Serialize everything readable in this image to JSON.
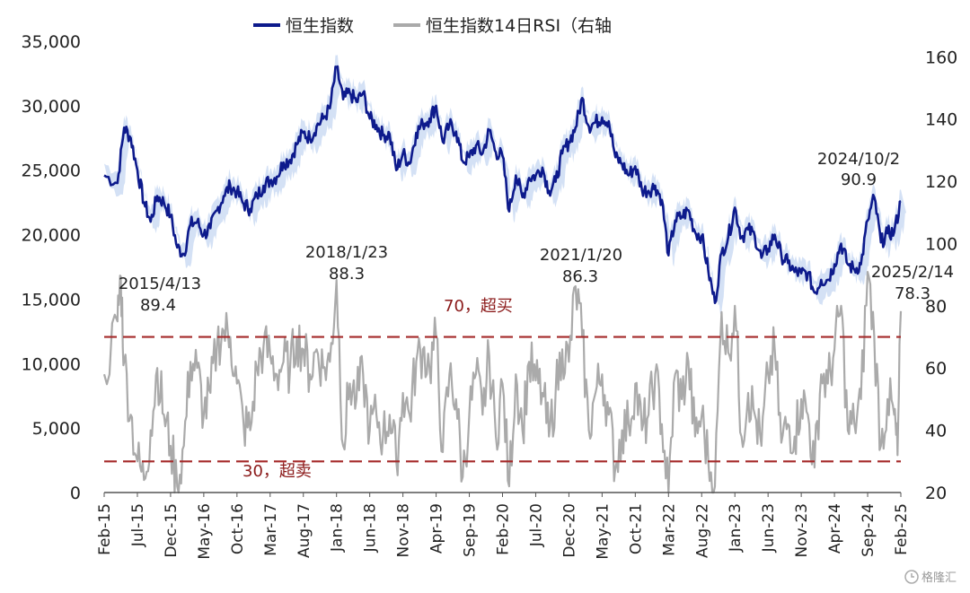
{
  "chart_data": {
    "type": "line",
    "legend": [
      {
        "name": "恒生指数",
        "color": "#0d1a8c"
      },
      {
        "name": "恒生指数14日RSI（右轴",
        "color": "#aaaaaa"
      }
    ],
    "x_tick_labels": [
      "Feb-15",
      "Jul-15",
      "Dec-15",
      "May-16",
      "Oct-16",
      "Mar-17",
      "Aug-17",
      "Jan-18",
      "Jun-18",
      "Nov-18",
      "Apr-19",
      "Sep-19",
      "Feb-20",
      "Jul-20",
      "Dec-20",
      "May-21",
      "Oct-21",
      "Mar-22",
      "Aug-22",
      "Jan-23",
      "Jun-23",
      "Nov-23",
      "Apr-24",
      "Sep-24",
      "Feb-25"
    ],
    "y_left": {
      "ticks": [
        "0",
        "5,000",
        "10,000",
        "15,000",
        "20,000",
        "25,000",
        "30,000",
        "35,000"
      ],
      "ylim": [
        0,
        35000
      ]
    },
    "y_right": {
      "ticks": [
        "20",
        "40",
        "60",
        "80",
        "100",
        "120",
        "140",
        "160"
      ],
      "ylim": [
        20,
        165
      ]
    },
    "series": [
      {
        "name": "恒生指数",
        "axis": "left",
        "color": "#0d1a8c",
        "band_color": "#c9d9f2",
        "points": [
          [
            "Feb-15",
            24600
          ],
          [
            "Apr-15",
            24000
          ],
          [
            "May-15",
            28300
          ],
          [
            "Jun-15",
            27500
          ],
          [
            "Jul-15",
            25000
          ],
          [
            "Aug-15",
            22500
          ],
          [
            "Sep-15",
            21000
          ],
          [
            "Oct-15",
            23000
          ],
          [
            "Nov-15",
            22500
          ],
          [
            "Dec-15",
            21500
          ],
          [
            "Jan-16",
            19000
          ],
          [
            "Feb-16",
            18500
          ],
          [
            "Mar-16",
            20800
          ],
          [
            "Apr-16",
            21000
          ],
          [
            "May-16",
            20000
          ],
          [
            "Jun-16",
            20500
          ],
          [
            "Jul-16",
            21900
          ],
          [
            "Aug-16",
            23000
          ],
          [
            "Sep-16",
            23800
          ],
          [
            "Oct-16",
            23300
          ],
          [
            "Nov-16",
            22400
          ],
          [
            "Dec-16",
            22000
          ],
          [
            "Jan-17",
            23000
          ],
          [
            "Feb-17",
            23800
          ],
          [
            "Mar-17",
            24200
          ],
          [
            "Apr-17",
            24500
          ],
          [
            "May-17",
            25600
          ],
          [
            "Jun-17",
            25800
          ],
          [
            "Jul-17",
            27000
          ],
          [
            "Aug-17",
            27900
          ],
          [
            "Sep-17",
            27500
          ],
          [
            "Oct-17",
            28400
          ],
          [
            "Nov-17",
            29000
          ],
          [
            "Dec-17",
            29800
          ],
          [
            "Jan-18",
            33000
          ],
          [
            "Feb-18",
            30500
          ],
          [
            "Mar-18",
            31000
          ],
          [
            "Apr-18",
            30300
          ],
          [
            "May-18",
            31000
          ],
          [
            "Jun-18",
            29000
          ],
          [
            "Jul-18",
            28500
          ],
          [
            "Aug-18",
            27700
          ],
          [
            "Sep-18",
            27800
          ],
          [
            "Oct-18",
            25000
          ],
          [
            "Nov-18",
            26300
          ],
          [
            "Dec-18",
            25500
          ],
          [
            "Jan-19",
            27900
          ],
          [
            "Feb-19",
            28600
          ],
          [
            "Mar-19",
            29000
          ],
          [
            "Apr-19",
            30000
          ],
          [
            "May-19",
            27200
          ],
          [
            "Jun-19",
            28500
          ],
          [
            "Jul-19",
            28000
          ],
          [
            "Aug-19",
            25700
          ],
          [
            "Sep-19",
            26000
          ],
          [
            "Oct-19",
            26900
          ],
          [
            "Nov-19",
            26300
          ],
          [
            "Dec-19",
            28100
          ],
          [
            "Jan-20",
            26400
          ],
          [
            "Feb-20",
            26100
          ],
          [
            "Mar-20",
            21800
          ],
          [
            "Apr-20",
            24600
          ],
          [
            "May-20",
            22900
          ],
          [
            "Jun-20",
            24400
          ],
          [
            "Jul-20",
            24600
          ],
          [
            "Aug-20",
            25200
          ],
          [
            "Sep-20",
            23400
          ],
          [
            "Oct-20",
            24100
          ],
          [
            "Nov-20",
            26300
          ],
          [
            "Dec-20",
            27200
          ],
          [
            "Jan-21",
            28300
          ],
          [
            "Feb-21",
            30600
          ],
          [
            "Mar-21",
            28400
          ],
          [
            "Apr-21",
            28700
          ],
          [
            "May-21",
            29100
          ],
          [
            "Jun-21",
            28800
          ],
          [
            "Jul-21",
            26000
          ],
          [
            "Aug-21",
            25500
          ],
          [
            "Sep-21",
            24600
          ],
          [
            "Oct-21",
            25300
          ],
          [
            "Nov-21",
            23500
          ],
          [
            "Dec-21",
            23400
          ],
          [
            "Jan-22",
            23800
          ],
          [
            "Feb-22",
            22700
          ],
          [
            "Mar-22",
            18400
          ],
          [
            "Apr-22",
            21100
          ],
          [
            "May-22",
            21400
          ],
          [
            "Jun-22",
            21900
          ],
          [
            "Jul-22",
            20200
          ],
          [
            "Aug-22",
            19900
          ],
          [
            "Sep-22",
            17200
          ],
          [
            "Oct-22",
            14700
          ],
          [
            "Nov-22",
            18600
          ],
          [
            "Dec-22",
            19800
          ],
          [
            "Jan-23",
            22100
          ],
          [
            "Feb-23",
            19800
          ],
          [
            "Mar-23",
            20400
          ],
          [
            "Apr-23",
            19900
          ],
          [
            "May-23",
            18200
          ],
          [
            "Jun-23",
            18900
          ],
          [
            "Jul-23",
            20000
          ],
          [
            "Aug-23",
            18400
          ],
          [
            "Sep-23",
            17800
          ],
          [
            "Oct-23",
            17100
          ],
          [
            "Nov-23",
            17000
          ],
          [
            "Dec-23",
            17000
          ],
          [
            "Jan-24",
            15500
          ],
          [
            "Feb-24",
            16500
          ],
          [
            "Mar-24",
            16500
          ],
          [
            "Apr-24",
            17700
          ],
          [
            "May-24",
            19300
          ],
          [
            "Jun-24",
            17700
          ],
          [
            "Jul-24",
            17300
          ],
          [
            "Aug-24",
            17700
          ],
          [
            "Sep-24",
            21100
          ],
          [
            "Oct-24",
            22900
          ],
          [
            "Nov-24",
            19400
          ],
          [
            "Dec-24",
            20100
          ],
          [
            "Jan-25",
            20200
          ],
          [
            "Feb-25",
            22600
          ]
        ]
      },
      {
        "name": "恒生指数14日RSI（右轴",
        "axis": "right",
        "color": "#aaaaaa",
        "points": [
          [
            "Feb-15",
            58
          ],
          [
            "Apr-15",
            75
          ],
          [
            "Apr-15",
            89.4
          ],
          [
            "May-15",
            62
          ],
          [
            "Jun-15",
            45
          ],
          [
            "Jul-15",
            30
          ],
          [
            "Aug-15",
            24
          ],
          [
            "Sep-15",
            40
          ],
          [
            "Oct-15",
            60
          ],
          [
            "Nov-15",
            45
          ],
          [
            "Dec-15",
            35
          ],
          [
            "Jan-16",
            22
          ],
          [
            "Feb-16",
            35
          ],
          [
            "Mar-16",
            62
          ],
          [
            "Apr-16",
            60
          ],
          [
            "May-16",
            45
          ],
          [
            "Jun-16",
            52
          ],
          [
            "Jul-16",
            68
          ],
          [
            "Aug-16",
            72
          ],
          [
            "Sep-16",
            70
          ],
          [
            "Oct-16",
            55
          ],
          [
            "Nov-16",
            42
          ],
          [
            "Dec-16",
            40
          ],
          [
            "Jan-17",
            60
          ],
          [
            "Feb-17",
            67
          ],
          [
            "Mar-17",
            64
          ],
          [
            "Apr-17",
            58
          ],
          [
            "May-17",
            62
          ],
          [
            "Jun-17",
            60
          ],
          [
            "Jul-17",
            70
          ],
          [
            "Aug-17",
            66
          ],
          [
            "Sep-17",
            58
          ],
          [
            "Oct-17",
            66
          ],
          [
            "Nov-17",
            60
          ],
          [
            "Dec-17",
            62
          ],
          [
            "Jan-18",
            88.3
          ],
          [
            "Feb-18",
            35
          ],
          [
            "Mar-18",
            55
          ],
          [
            "Apr-18",
            50
          ],
          [
            "May-18",
            58
          ],
          [
            "Jun-18",
            40
          ],
          [
            "Jul-18",
            45
          ],
          [
            "Aug-18",
            38
          ],
          [
            "Sep-18",
            45
          ],
          [
            "Oct-18",
            30
          ],
          [
            "Nov-18",
            52
          ],
          [
            "Dec-18",
            45
          ],
          [
            "Jan-19",
            62
          ],
          [
            "Feb-19",
            66
          ],
          [
            "Mar-19",
            60
          ],
          [
            "Apr-19",
            70
          ],
          [
            "May-19",
            33
          ],
          [
            "Jun-19",
            58
          ],
          [
            "Jul-19",
            50
          ],
          [
            "Aug-19",
            25
          ],
          [
            "Sep-19",
            45
          ],
          [
            "Oct-19",
            58
          ],
          [
            "Nov-19",
            45
          ],
          [
            "Dec-19",
            64
          ],
          [
            "Jan-20",
            38
          ],
          [
            "Feb-20",
            55
          ],
          [
            "Mar-20",
            22
          ],
          [
            "Apr-20",
            58
          ],
          [
            "May-20",
            40
          ],
          [
            "Jun-20",
            62
          ],
          [
            "Jul-20",
            56
          ],
          [
            "Aug-20",
            52
          ],
          [
            "Sep-20",
            38
          ],
          [
            "Oct-20",
            52
          ],
          [
            "Nov-20",
            66
          ],
          [
            "Dec-20",
            62
          ],
          [
            "Jan-21",
            86.3
          ],
          [
            "Feb-21",
            70
          ],
          [
            "Mar-21",
            40
          ],
          [
            "Apr-21",
            52
          ],
          [
            "May-21",
            58
          ],
          [
            "Jun-21",
            45
          ],
          [
            "Jul-21",
            28
          ],
          [
            "Aug-21",
            40
          ],
          [
            "Sep-21",
            42
          ],
          [
            "Oct-21",
            55
          ],
          [
            "Nov-21",
            40
          ],
          [
            "Dec-21",
            45
          ],
          [
            "Jan-22",
            58
          ],
          [
            "Feb-22",
            42
          ],
          [
            "Mar-22",
            20
          ],
          [
            "Apr-22",
            58
          ],
          [
            "May-22",
            50
          ],
          [
            "Jun-22",
            62
          ],
          [
            "Jul-22",
            38
          ],
          [
            "Aug-22",
            45
          ],
          [
            "Sep-22",
            30
          ],
          [
            "Oct-22",
            22
          ],
          [
            "Nov-22",
            78
          ],
          [
            "Dec-22",
            65
          ],
          [
            "Jan-23",
            80
          ],
          [
            "Feb-23",
            38
          ],
          [
            "Mar-23",
            52
          ],
          [
            "Apr-23",
            45
          ],
          [
            "May-23",
            35
          ],
          [
            "Jun-23",
            58
          ],
          [
            "Jul-23",
            66
          ],
          [
            "Aug-23",
            36
          ],
          [
            "Sep-23",
            42
          ],
          [
            "Oct-23",
            38
          ],
          [
            "Nov-23",
            50
          ],
          [
            "Dec-23",
            45
          ],
          [
            "Jan-24",
            28
          ],
          [
            "Feb-24",
            58
          ],
          [
            "Mar-24",
            55
          ],
          [
            "Apr-24",
            66
          ],
          [
            "May-24",
            80
          ],
          [
            "Jun-24",
            40
          ],
          [
            "Jul-24",
            42
          ],
          [
            "Aug-24",
            50
          ],
          [
            "Sep-24",
            90.9
          ],
          [
            "Oct-24",
            70
          ],
          [
            "Nov-24",
            35
          ],
          [
            "Dec-24",
            50
          ],
          [
            "Jan-25",
            45
          ],
          [
            "Jan-25",
            32
          ],
          [
            "Feb-25",
            78.3
          ]
        ]
      }
    ],
    "reference_lines": [
      {
        "value": 70,
        "axis": "right",
        "label": "70，超买",
        "color": "#a52a2a"
      },
      {
        "value": 30,
        "axis": "right",
        "label": "30，超卖",
        "color": "#a52a2a"
      }
    ],
    "annotations": [
      {
        "date": "2015/4/13",
        "value": "89.4"
      },
      {
        "date": "2018/1/23",
        "value": "88.3"
      },
      {
        "date": "2021/1/20",
        "value": "86.3"
      },
      {
        "date": "2024/10/2",
        "value": "90.9"
      },
      {
        "date": "2025/2/14",
        "value": "78.3"
      }
    ],
    "grid": false
  },
  "watermark": {
    "icon": "gelonghui-logo-icon",
    "text": "格隆汇"
  }
}
